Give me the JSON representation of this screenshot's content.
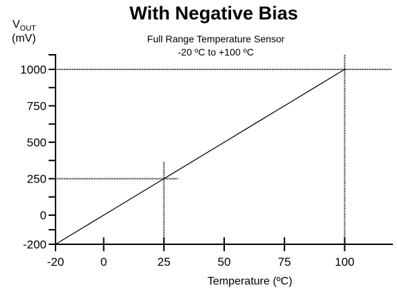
{
  "chart_data": {
    "type": "line",
    "title": "With Negative Bias",
    "subtitle_lines": [
      "Full Range Temperature Sensor",
      "-20 ºC to +100 ºC"
    ],
    "ylabel": {
      "main": "V",
      "subscript": "OUT",
      "unit": "(mV)"
    },
    "xlabel": "Temperature (ºC)",
    "x_ticks": [
      -20,
      0,
      25,
      50,
      75,
      100
    ],
    "y_ticks": [
      -200,
      0,
      250,
      500,
      750,
      1000
    ],
    "xlim": [
      -20,
      120
    ],
    "series": [
      {
        "x": [
          -20,
          0,
          25,
          50,
          75,
          100
        ],
        "y": [
          -200,
          0,
          250,
          500,
          750,
          1000
        ]
      }
    ],
    "reference_points": [
      {
        "x": 25,
        "y": 250
      },
      {
        "x": 100,
        "y": 1000
      }
    ],
    "grid": false
  }
}
